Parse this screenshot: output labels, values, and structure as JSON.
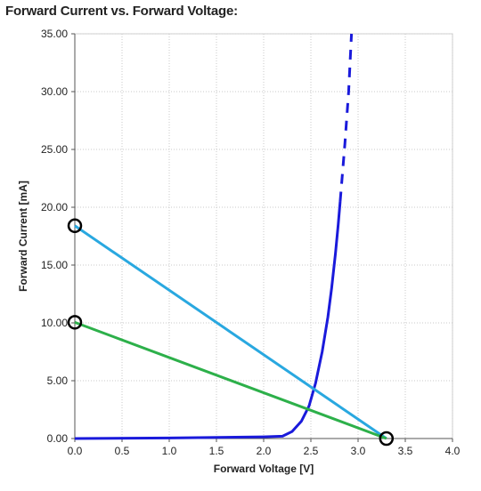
{
  "chart_data": {
    "type": "line",
    "title": "Forward Current vs. Forward Voltage:",
    "xlabel": "Forward Voltage [V]",
    "ylabel": "Forward Current [mA]",
    "xlim": [
      0,
      4
    ],
    "ylim": [
      0,
      35
    ],
    "x_ticks": [
      "0.0",
      "0.5",
      "1.0",
      "1.5",
      "2.0",
      "2.5",
      "3.0",
      "3.5",
      "4.0"
    ],
    "y_ticks": [
      "0.00",
      "5.00",
      "10.00",
      "15.00",
      "20.00",
      "25.00",
      "30.00",
      "35.00"
    ],
    "grid": true,
    "legend": "none",
    "series": [
      {
        "style": "solid",
        "color": "#1a1adb",
        "x": [
          0.0,
          1.0,
          2.0,
          2.2,
          2.3,
          2.4,
          2.48,
          2.55,
          2.62,
          2.68,
          2.72,
          2.76,
          2.79,
          2.81
        ],
        "y": [
          0.0,
          0.05,
          0.15,
          0.2,
          0.6,
          1.5,
          2.8,
          4.8,
          7.5,
          10.5,
          13.0,
          16.0,
          18.5,
          20.5
        ]
      },
      {
        "style": "dashed",
        "color": "#1a1adb",
        "x": [
          2.81,
          2.86,
          2.9,
          2.93
        ],
        "y": [
          20.5,
          25.5,
          30.0,
          35.0
        ]
      },
      {
        "style": "solid",
        "color": "#29a8e0",
        "x": [
          0.0,
          3.3
        ],
        "y": [
          18.4,
          0.0
        ]
      },
      {
        "style": "solid",
        "color": "#2db04a",
        "x": [
          0.0,
          3.3
        ],
        "y": [
          10.05,
          0.0
        ]
      }
    ],
    "markers": [
      {
        "shape": "circle",
        "x": 0.0,
        "y": 18.4
      },
      {
        "shape": "circle",
        "x": 0.0,
        "y": 10.05
      },
      {
        "shape": "circle",
        "x": 3.3,
        "y": 0.0
      }
    ]
  }
}
